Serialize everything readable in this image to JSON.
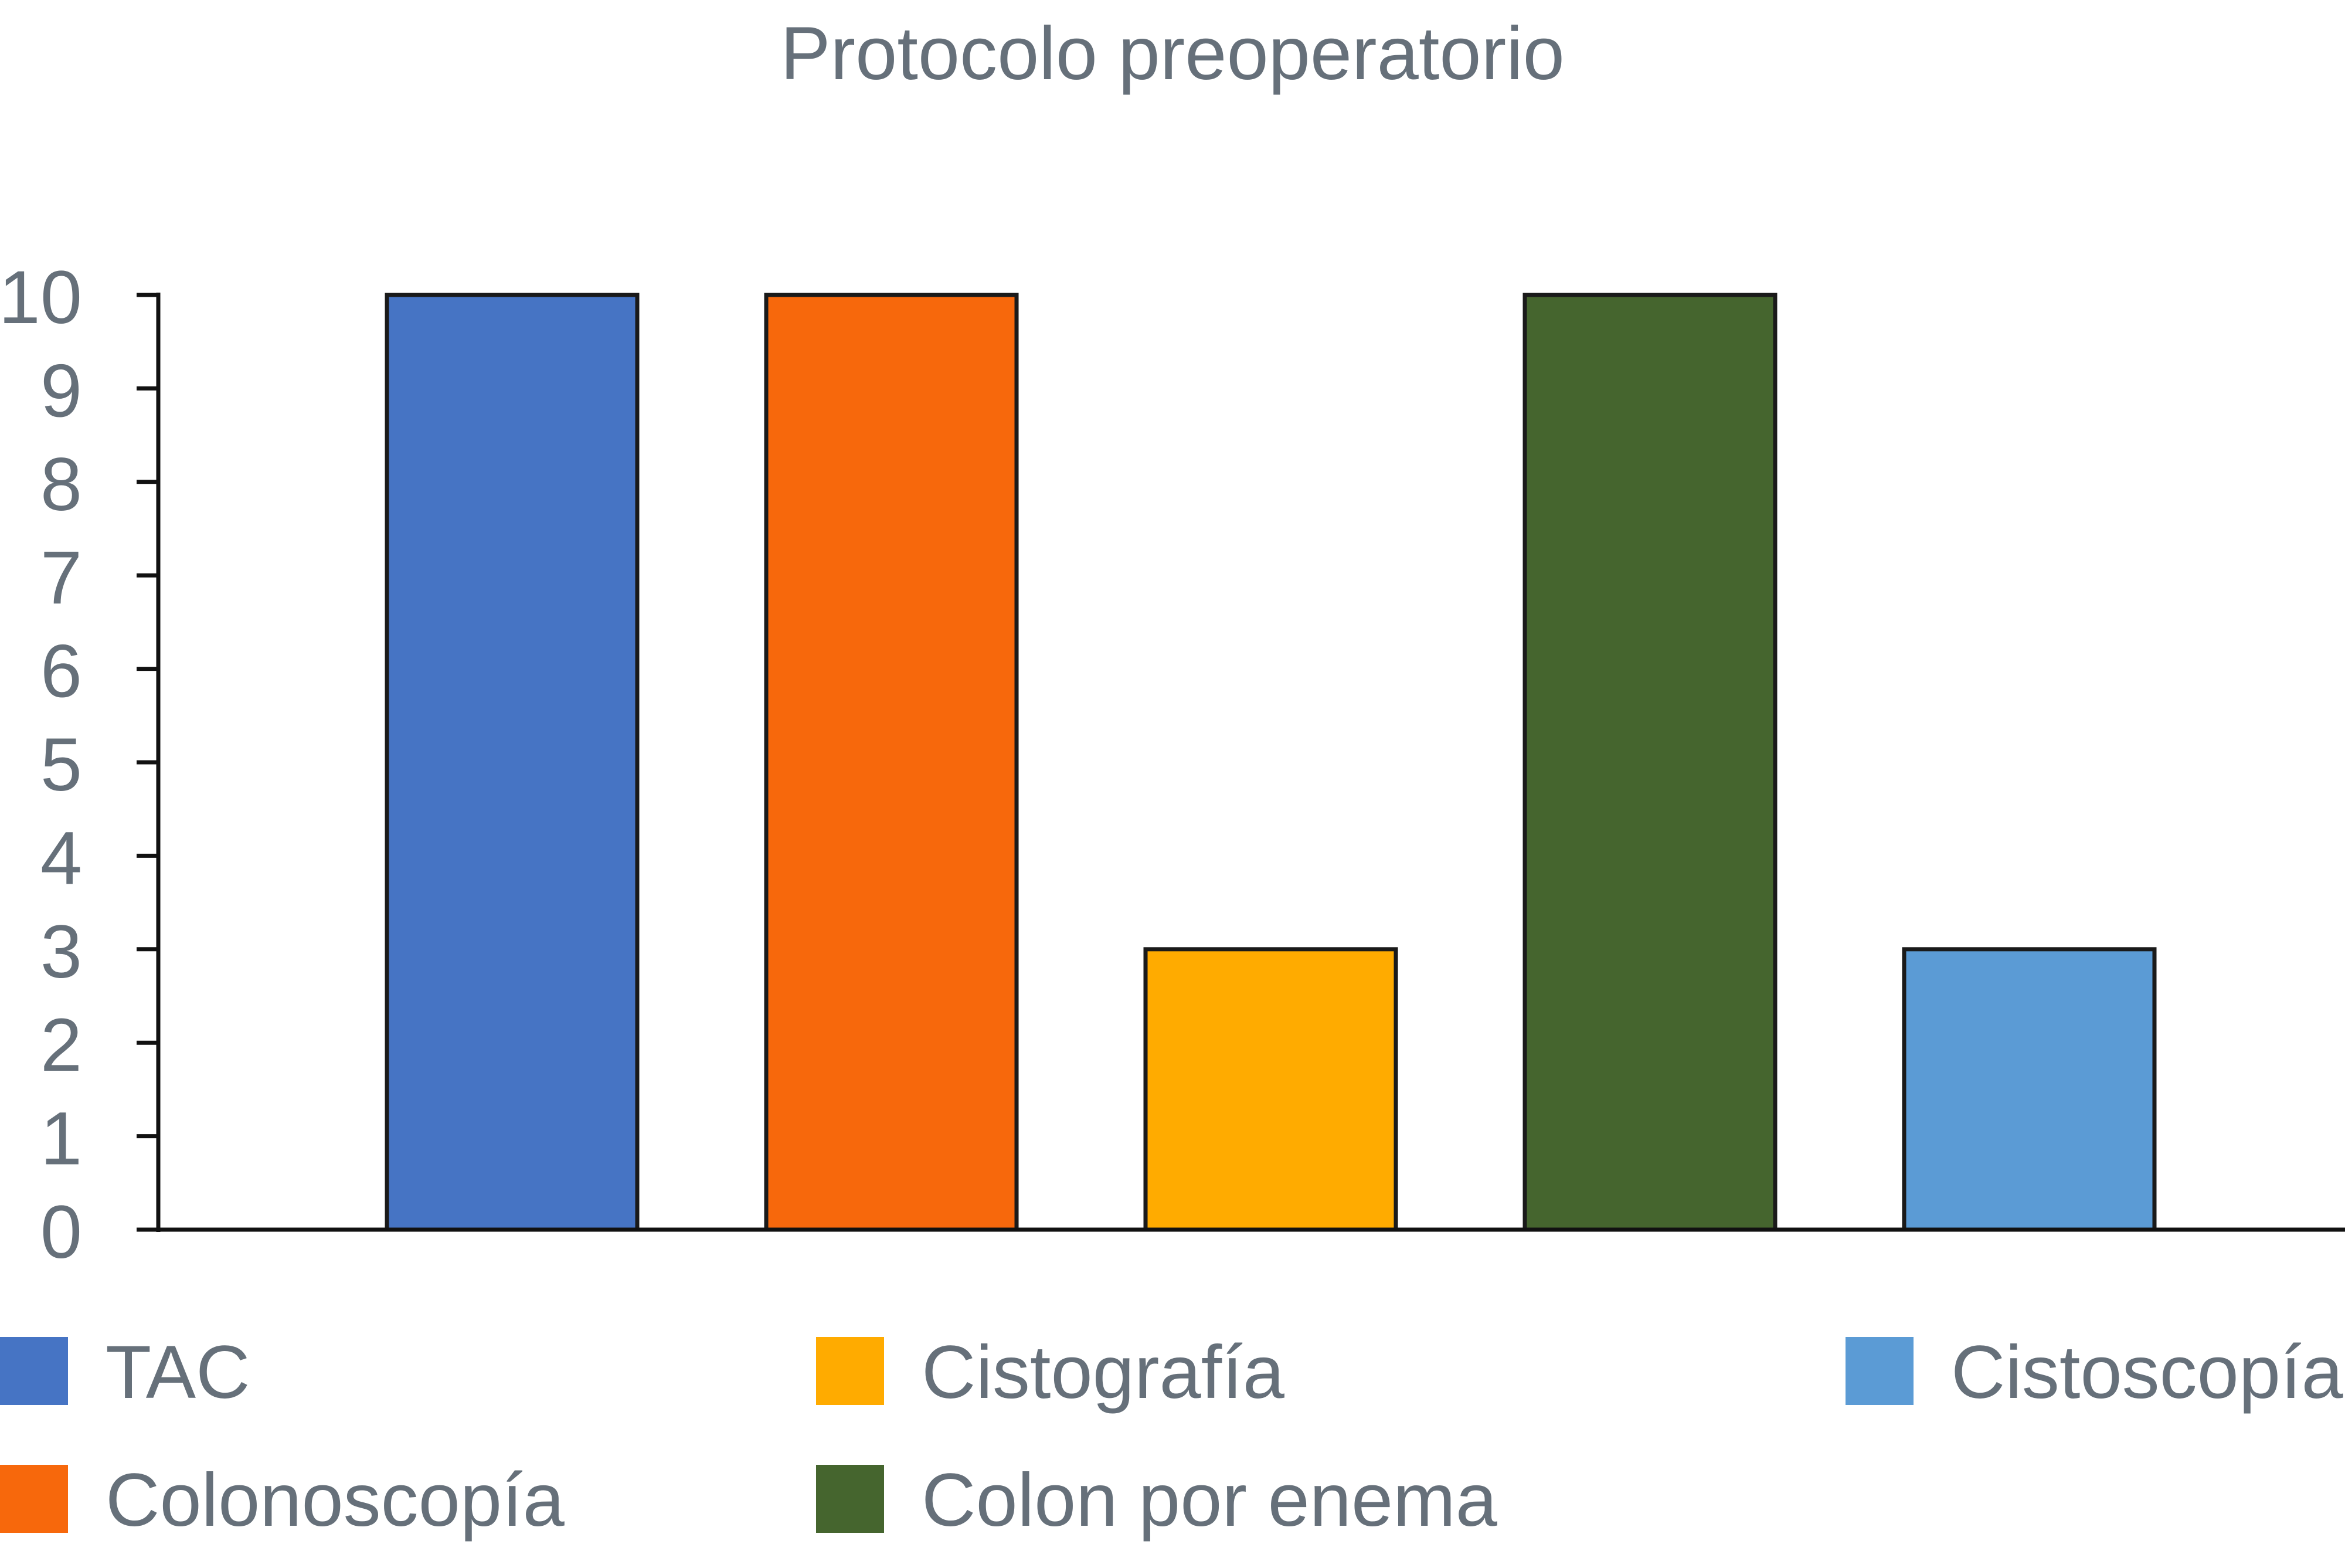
{
  "chart_data": {
    "type": "bar",
    "title": "Protocolo preoperatorio",
    "xlabel": "",
    "ylabel": "",
    "ylim": [
      0,
      10
    ],
    "yticks": [
      0,
      1,
      2,
      3,
      4,
      5,
      6,
      7,
      8,
      9,
      10
    ],
    "grid": false,
    "legend_position": "bottom",
    "categories": [
      "TAC",
      "Colonoscopía",
      "Cistografía",
      "Colon por enema",
      "Cistoscopía"
    ],
    "values": [
      10,
      10,
      3,
      10,
      3
    ],
    "colors": [
      "#4674c4",
      "#f7680c",
      "#ffab00",
      "#45652e",
      "#5b9bd5"
    ],
    "axis_color": "#111111",
    "text_color": "#66707a"
  }
}
